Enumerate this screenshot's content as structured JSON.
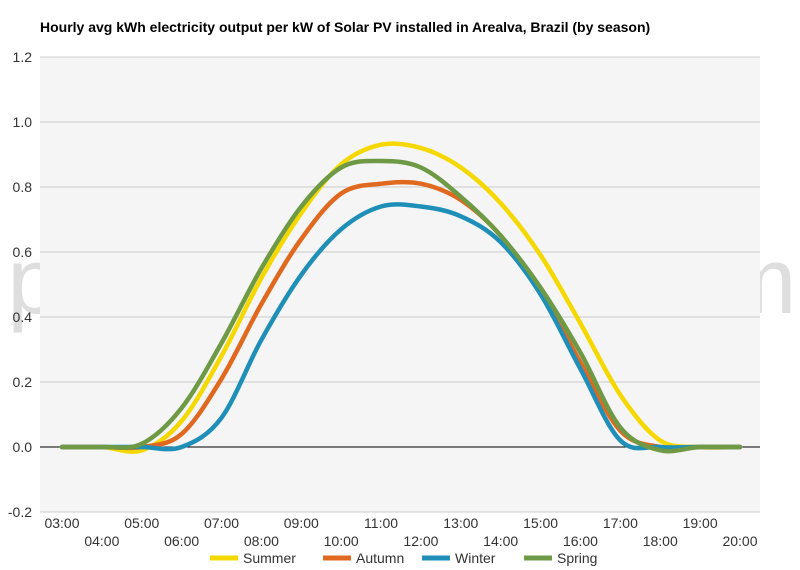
{
  "chart_data": {
    "type": "line",
    "title": "Hourly avg kWh electricity output per kW of Solar PV installed in Arealva, Brazil (by season)",
    "xlabel": "",
    "ylabel": "",
    "x": [
      "03:00",
      "04:00",
      "05:00",
      "06:00",
      "07:00",
      "08:00",
      "09:00",
      "10:00",
      "11:00",
      "12:00",
      "13:00",
      "14:00",
      "15:00",
      "16:00",
      "17:00",
      "18:00",
      "19:00",
      "20:00"
    ],
    "x_tick_labels": [
      "03:00",
      "04:00",
      "05:00",
      "06:00",
      "07:00",
      "08:00",
      "09:00",
      "10:00",
      "11:00",
      "12:00",
      "13:00",
      "14:00",
      "15:00",
      "16:00",
      "17:00",
      "18:00",
      "19:00",
      "20:00"
    ],
    "y_tick_labels": [
      "-0.2",
      "0.0",
      "0.2",
      "0.4",
      "0.6",
      "0.8",
      "1.0",
      "1.2"
    ],
    "ylim": [
      -0.2,
      1.2
    ],
    "grid": true,
    "legend_position": "bottom",
    "series": [
      {
        "name": "Summer",
        "color": "#f5d800",
        "values": [
          0.0,
          0.0,
          -0.01,
          0.08,
          0.28,
          0.52,
          0.72,
          0.87,
          0.93,
          0.92,
          0.86,
          0.75,
          0.59,
          0.38,
          0.16,
          0.02,
          0.0,
          0.0
        ]
      },
      {
        "name": "Autumn",
        "color": "#e0691f",
        "values": [
          0.0,
          0.0,
          0.0,
          0.04,
          0.21,
          0.44,
          0.64,
          0.78,
          0.81,
          0.81,
          0.76,
          0.65,
          0.48,
          0.26,
          0.05,
          0.0,
          0.0,
          0.0
        ]
      },
      {
        "name": "Winter",
        "color": "#1f8fb8",
        "values": [
          0.0,
          0.0,
          0.0,
          0.0,
          0.09,
          0.33,
          0.53,
          0.67,
          0.74,
          0.74,
          0.71,
          0.63,
          0.47,
          0.24,
          0.02,
          0.0,
          0.0,
          0.0
        ]
      },
      {
        "name": "Spring",
        "color": "#6e9a45",
        "values": [
          0.0,
          0.0,
          0.01,
          0.12,
          0.32,
          0.55,
          0.74,
          0.86,
          0.88,
          0.86,
          0.77,
          0.65,
          0.49,
          0.29,
          0.06,
          -0.01,
          0.0,
          0.0
        ]
      }
    ]
  },
  "watermark": {
    "text_left": "profileS",
    "text_right": "LAR.com"
  },
  "colors": {
    "plot_background": "#f5f5f5",
    "grid": "#cccccc",
    "zero_line": "#000000",
    "watermark_sun": "#fff3c4"
  }
}
